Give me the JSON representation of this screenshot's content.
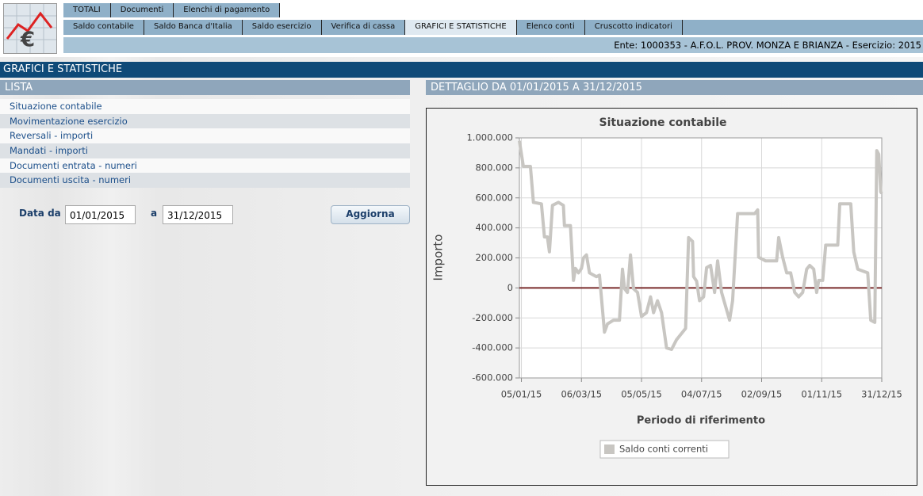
{
  "header": {
    "tabs_row1": [
      "TOTALI",
      "Documenti",
      "Elenchi di pagamento"
    ],
    "tabs_row2": [
      "Saldo contabile",
      "Saldo Banca d'Italia",
      "Saldo esercizio",
      "Verifica di cassa",
      "GRAFICI E STATISTICHE",
      "Elenco conti",
      "Cruscotto indicatori"
    ],
    "entity": "Ente: 1000353 - A.F.O.L. PROV. MONZA E BRIANZA - Esercizio: 2015"
  },
  "section_title": "GRAFICI E STATISTICHE",
  "list": {
    "title": "LISTA",
    "items": [
      "Situazione contabile",
      "Movimentazione esercizio",
      "Reversali - importi",
      "Mandati - importi",
      "Documenti entrata - numeri",
      "Documenti uscita - numeri"
    ]
  },
  "detail_title": "DETTAGLIO DA 01/01/2015 A 31/12/2015",
  "form": {
    "from_label": "Data da",
    "from_value": "01/01/2015",
    "to_label": "a",
    "to_value": "31/12/2015",
    "button": "Aggiorna"
  },
  "chart_data": {
    "type": "line",
    "title": "Situazione contabile",
    "y_label": "Importo",
    "x_label": "Periodo di riferimento",
    "x": [
      "03/01/15",
      "07/01/15",
      "14/01/15",
      "17/01/15",
      "25/01/15",
      "28/01/15",
      "31/01/15",
      "02/02/15",
      "05/02/15",
      "11/02/15",
      "16/02/15",
      "17/02/15",
      "23/02/15",
      "26/02/15",
      "28/02/15",
      "03/03/15",
      "06/03/15",
      "08/03/15",
      "11/03/15",
      "14/03/15",
      "21/03/15",
      "24/03/15",
      "29/03/15",
      "01/04/15",
      "07/04/15",
      "13/04/15",
      "16/04/15",
      "18/04/15",
      "21/04/15",
      "24/04/15",
      "27/04/15",
      "01/05/15",
      "05/05/15",
      "10/05/15",
      "14/05/15",
      "17/05/15",
      "21/05/15",
      "25/05/15",
      "30/05/15",
      "04/06/15",
      "09/06/15",
      "15/06/15",
      "18/06/15",
      "21/06/15",
      "25/06/15",
      "26/06/15",
      "29/06/15",
      "02/07/15",
      "06/07/15",
      "09/07/15",
      "13/07/15",
      "17/07/15",
      "20/07/15",
      "24/07/15",
      "01/08/15",
      "04/08/15",
      "09/08/15",
      "26/08/15",
      "29/08/15",
      "30/08/15",
      "06/09/15",
      "17/09/15",
      "19/09/15",
      "23/09/15",
      "27/09/15",
      "01/10/15",
      "05/10/15",
      "09/10/15",
      "13/10/15",
      "17/10/15",
      "20/10/15",
      "24/10/15",
      "27/10/15",
      "29/10/15",
      "02/11/15",
      "05/11/15",
      "17/11/15",
      "19/11/15",
      "30/11/15",
      "03/12/15",
      "07/12/15",
      "17/12/15",
      "20/12/15",
      "24/12/15",
      "26/12/15",
      "28/12/15",
      "30/12/15",
      "31/12/15"
    ],
    "series": [
      {
        "name": "Saldo conti correnti",
        "color": "#c8c6c2",
        "values": [
          980000,
          810000,
          810000,
          570000,
          560000,
          340000,
          340000,
          240000,
          550000,
          570000,
          550000,
          415000,
          415000,
          50000,
          130000,
          100000,
          130000,
          200000,
          220000,
          100000,
          75000,
          85000,
          -295000,
          -240000,
          -215000,
          -215000,
          125000,
          -5000,
          -30000,
          220000,
          -5000,
          -30000,
          -190000,
          -165000,
          -60000,
          -165000,
          -85000,
          -165000,
          -400000,
          -410000,
          -345000,
          -295000,
          -270000,
          335000,
          310000,
          75000,
          45000,
          -85000,
          -60000,
          135000,
          150000,
          -30000,
          180000,
          -30000,
          -215000,
          -85000,
          495000,
          495000,
          520000,
          205000,
          180000,
          180000,
          335000,
          205000,
          100000,
          100000,
          -30000,
          -60000,
          -30000,
          125000,
          150000,
          125000,
          -30000,
          50000,
          50000,
          285000,
          285000,
          560000,
          560000,
          240000,
          125000,
          100000,
          -215000,
          -230000,
          915000,
          890000,
          640000,
          630000
        ]
      }
    ],
    "xlim": [
      "03/01/15",
      "31/12/15"
    ],
    "xticks": [
      "05/01/15",
      "06/03/15",
      "05/05/15",
      "04/07/15",
      "02/09/15",
      "01/11/15",
      "31/12/15"
    ],
    "ylim": [
      -600000,
      1000000
    ],
    "yticks": [
      {
        "value": -600000,
        "label": "-600.000"
      },
      {
        "value": -400000,
        "label": "-400.000"
      },
      {
        "value": -200000,
        "label": "-200.000"
      },
      0,
      {
        "value": 200000,
        "label": "200.000"
      },
      {
        "value": 400000,
        "label": "400.000"
      },
      {
        "value": 600000,
        "label": "600.000"
      },
      {
        "value": 800000,
        "label": "800.000"
      },
      {
        "value": 1000000,
        "label": "1.000.000"
      }
    ],
    "zero_line": {
      "value": 0,
      "color": "#7a2c2c"
    },
    "grid": true,
    "legend": "bottom"
  }
}
